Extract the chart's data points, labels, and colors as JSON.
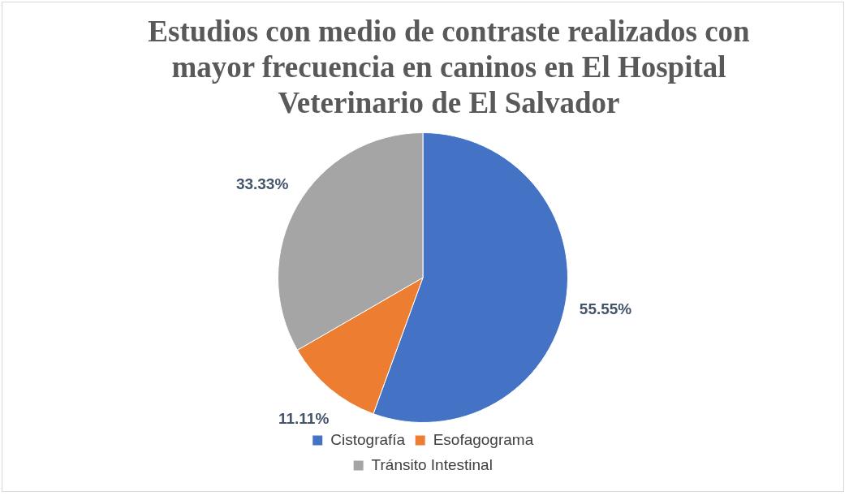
{
  "chart_data": {
    "type": "pie",
    "title": "Estudios con medio de contraste realizados con mayor frecuencia en caninos en El Hospital Veterinario de El Salvador",
    "categories": [
      "Cistografía",
      "Esofagograma",
      "Tránsito Intestinal"
    ],
    "values": [
      55.55,
      11.11,
      33.33
    ],
    "value_labels": [
      "55.55%",
      "11.11%",
      "33.33%"
    ],
    "colors": [
      "#4472c4",
      "#ed7d31",
      "#a5a5a5"
    ],
    "legend": "bottom"
  }
}
